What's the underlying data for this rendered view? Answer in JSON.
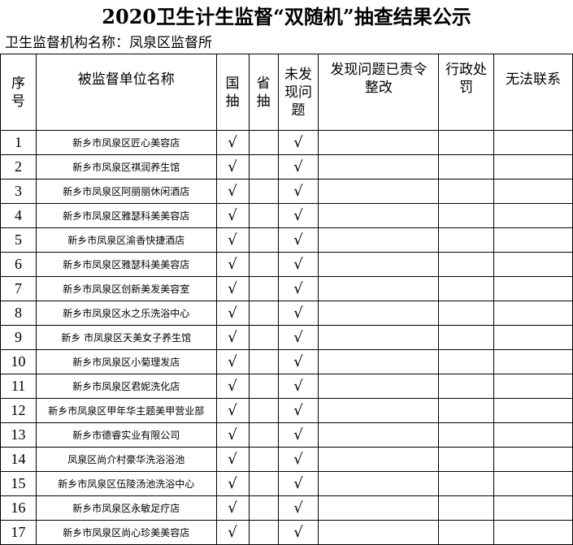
{
  "title": "2020卫生计生监督“双随机”抽查结果公示",
  "org": "卫生监督机构名称：凤泉区监督所",
  "headers": {
    "no": "序号",
    "name": "被监督单位名称",
    "national": "国抽",
    "provincial": "省抽",
    "no_problem": "未发现问题",
    "rectified": "发现问题已责令整改",
    "penalty": "行政处罚",
    "unreachable": "无法联系"
  },
  "check_mark": "√",
  "rows": [
    {
      "no": "1",
      "name": "新乡市凤泉区匠心美容店"
    },
    {
      "no": "2",
      "name": "新乡市凤泉区祺润养生馆"
    },
    {
      "no": "3",
      "name": "新乡市凤泉区阿丽丽休闲酒店"
    },
    {
      "no": "4",
      "name": "新乡市凤泉区雅瑟科美美容店"
    },
    {
      "no": "5",
      "name": "新乡市凤泉区渝香快捷酒店"
    },
    {
      "no": "6",
      "name": "新乡市凤泉区雅瑟科美美容店"
    },
    {
      "no": "7",
      "name": "新乡市凤泉区创新美发美容室"
    },
    {
      "no": "8",
      "name": "新乡市凤泉区水之乐洗浴中心"
    },
    {
      "no": "9",
      "name": "新乡 市凤泉区天美女子养生馆"
    },
    {
      "no": "10",
      "name": "新乡市凤泉区小菊理发店"
    },
    {
      "no": "11",
      "name": "新乡市凤泉区君妮洗化店"
    },
    {
      "no": "12",
      "name": "新乡市凤泉区甲年华主题美甲营业部"
    },
    {
      "no": "13",
      "name": "新乡市德睿实业有限公司"
    },
    {
      "no": "14",
      "name": "凤泉区尚介村豪华洗浴浴池"
    },
    {
      "no": "15",
      "name": "新乡市凤泉区伍陵汤池洗浴中心"
    },
    {
      "no": "16",
      "name": "新乡市凤泉区永敏足疗店"
    },
    {
      "no": "17",
      "name": "新乡市凤泉区尚心珍美美容店"
    }
  ]
}
